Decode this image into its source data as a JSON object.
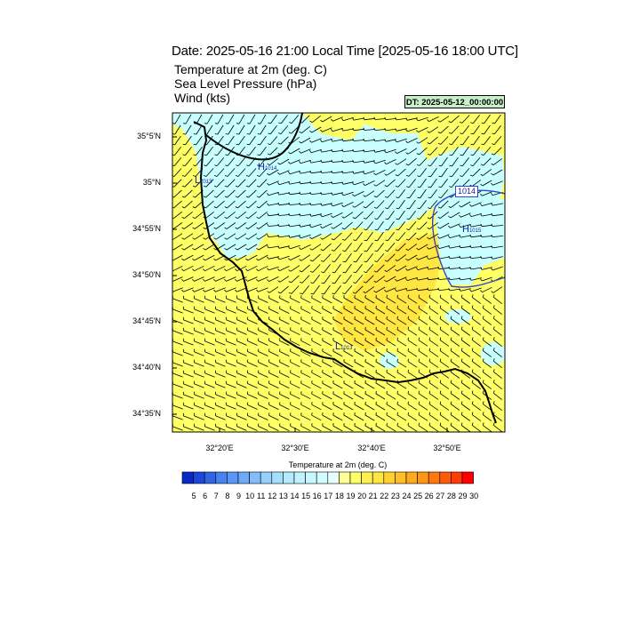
{
  "header": {
    "title": "Date: 2025-05-16  21:00 Local Time [2025-05-16  18:00 UTC]",
    "fields": [
      "Temperature at 2m   (deg. C)",
      "Sea Level Pressure   (hPa)",
      "Wind   (kts)"
    ],
    "dt_label": "DT: 2025-05-12_00:00:00"
  },
  "map": {
    "lat_labels": [
      "35°5'N",
      "35°N",
      "34°55'N",
      "34°50'N",
      "34°45'N",
      "34°40'N",
      "34°35'N"
    ],
    "lon_labels": [
      "32°20'E",
      "32°30'E",
      "32°40'E",
      "32°50'E"
    ],
    "pressure_centers": [
      {
        "type": "H",
        "value": "1014"
      },
      {
        "type": "L",
        "value": "1013"
      },
      {
        "type": "H",
        "value": "1015"
      },
      {
        "type": "L",
        "value": "1013"
      }
    ],
    "isobar_label": "1014",
    "colors": {
      "warm": "#ffff66",
      "warm_dark": "#ffe640",
      "cool": "#c8ffff",
      "coast": "#000000",
      "isobar_black": "#000000",
      "isobar_blue": "#3344cc"
    }
  },
  "colorbar": {
    "title": "Temperature at 2m  (deg. C)",
    "labels": [
      "5",
      "6",
      "7",
      "8",
      "9",
      "10",
      "11",
      "12",
      "13",
      "14",
      "15",
      "16",
      "17",
      "18",
      "19",
      "20",
      "21",
      "22",
      "23",
      "24",
      "25",
      "26",
      "27",
      "28",
      "29",
      "30"
    ],
    "colors": [
      "#0a28c8",
      "#1e46dc",
      "#3264e6",
      "#4682f0",
      "#5a96f5",
      "#6eaaf8",
      "#82bcfa",
      "#96d0fc",
      "#a6defd",
      "#b4eafe",
      "#c0f2ff",
      "#c8f8ff",
      "#d2fcff",
      "#e6ffff",
      "#ffff96",
      "#ffff66",
      "#fff050",
      "#ffe640",
      "#ffd232",
      "#ffbe28",
      "#ffaa1e",
      "#ff9614",
      "#ff780f",
      "#ff5a0a",
      "#ff3c05",
      "#ff0000"
    ]
  }
}
